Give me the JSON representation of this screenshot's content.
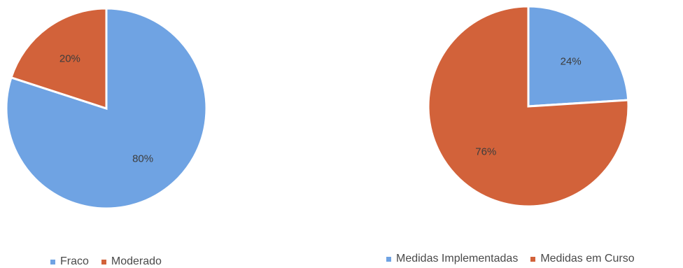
{
  "chart_data": [
    {
      "type": "pie",
      "categories": [
        "Fraco",
        "Moderado"
      ],
      "values": [
        80,
        20
      ],
      "labels": [
        "80%",
        "20%"
      ],
      "colors": [
        "#6fa3e3",
        "#d2623a"
      ],
      "legend_position": "bottom",
      "title": ""
    },
    {
      "type": "pie",
      "categories": [
        "Medidas Implementadas",
        "Medidas em Curso"
      ],
      "values": [
        24,
        76
      ],
      "labels": [
        "24%",
        "76%"
      ],
      "colors": [
        "#6fa3e3",
        "#d2623a"
      ],
      "legend_position": "bottom",
      "title": ""
    }
  ]
}
